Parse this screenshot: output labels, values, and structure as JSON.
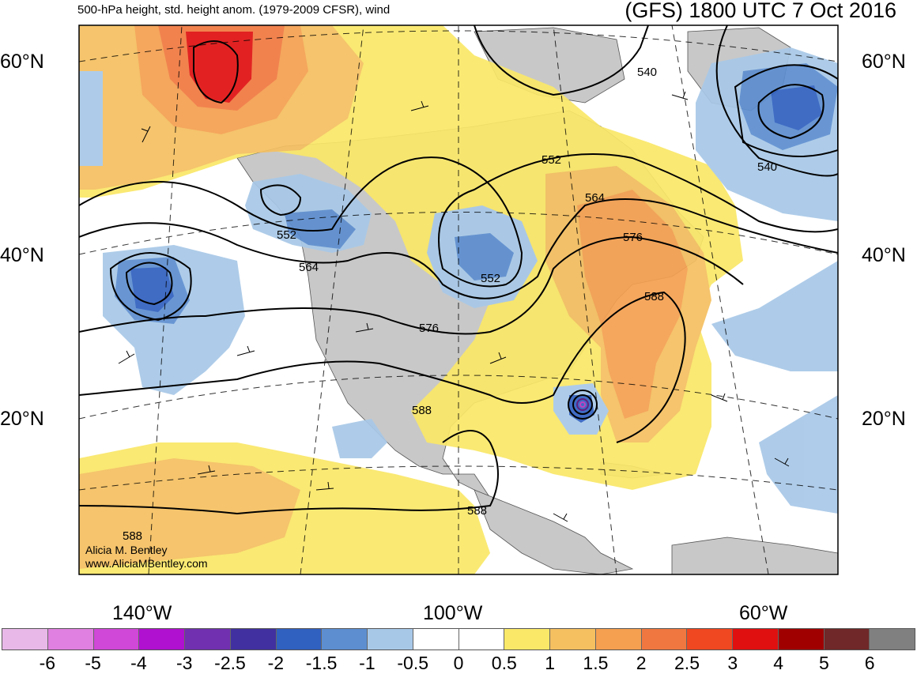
{
  "header": {
    "subtitle": "500-hPa height, std. height anom. (1979-2009 CFSR), wind",
    "title": "(GFS) 1800 UTC 7 Oct 2016"
  },
  "axes": {
    "lat_labels_left": [
      "60°N",
      "40°N",
      "20°N"
    ],
    "lat_labels_right": [
      "60°N",
      "40°N",
      "20°N"
    ],
    "lon_labels": [
      "140°W",
      "100°W",
      "60°W"
    ]
  },
  "contour_labels": [
    "540",
    "540",
    "552",
    "552",
    "552",
    "564",
    "564",
    "576",
    "576",
    "588",
    "588",
    "588",
    "588"
  ],
  "credit": {
    "line1": "Alicia M. Bentley",
    "line2": "www.AliciaMBentley.com"
  },
  "colorbar": {
    "colors": [
      "#e8b8e8",
      "#e080e0",
      "#d048d8",
      "#b010d0",
      "#7030b0",
      "#4030a0",
      "#3060c0",
      "#5d8ed0",
      "#a8c8e8",
      "#ffffff",
      "#ffffff",
      "#fae868",
      "#f5c060",
      "#f5a050",
      "#f07840",
      "#f04820",
      "#e01010",
      "#a00000",
      "#702828",
      "#808080"
    ],
    "labels": [
      "-6",
      "-5",
      "-4",
      "-3",
      "-2.5",
      "-2",
      "-1.5",
      "-1",
      "-0.5",
      "0",
      "0.5",
      "1",
      "1.5",
      "2",
      "2.5",
      "3",
      "4",
      "5",
      "6"
    ]
  },
  "colors": {
    "land": "#c8c8c8",
    "ocean": "#ffffff",
    "pos_weak": "#fae868",
    "pos_mod": "#f5c060",
    "pos_strong": "#f5a050",
    "pos_high": "#f07840",
    "pos_extreme": "#e01010",
    "neg_weak": "#a8c8e8",
    "neg_mod": "#5d8ed0",
    "neg_strong": "#3060c0"
  }
}
